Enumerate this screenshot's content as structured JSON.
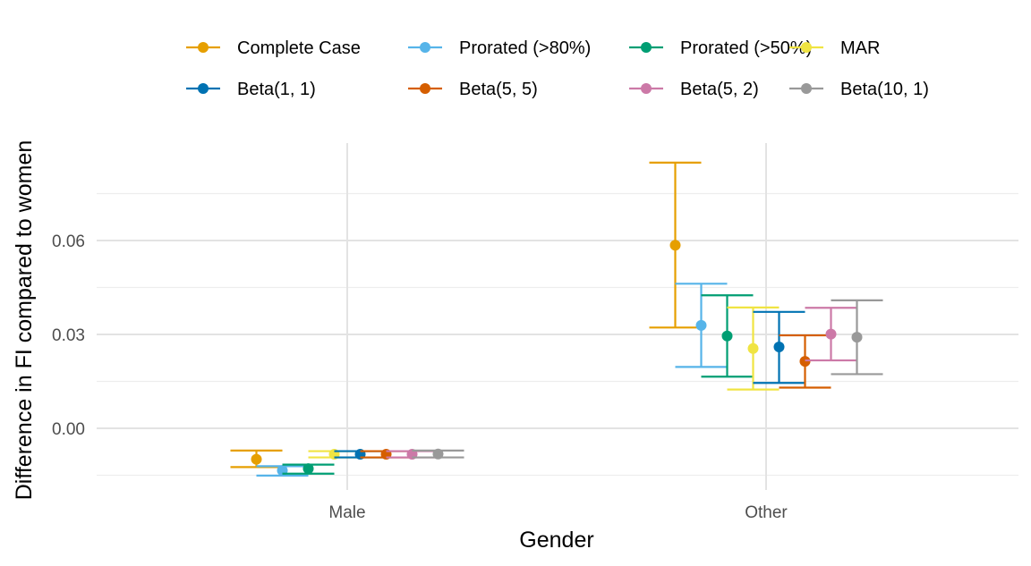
{
  "chart_data": {
    "type": "errorbar",
    "xlabel": "Gender",
    "ylabel": "Difference in FI compared to women",
    "categories": [
      "Male",
      "Other"
    ],
    "y_ticks": [
      "0.00",
      "0.03",
      "0.06"
    ],
    "y_tick_values": [
      0.0,
      0.03,
      0.06
    ],
    "ylim": [
      -0.015,
      0.088
    ],
    "grid": true,
    "legend_position": "top",
    "series": [
      {
        "name": "Complete Case",
        "color": "#E69F00",
        "points": [
          {
            "x": "Male",
            "y": -0.0099,
            "lo": -0.0124,
            "hi": -0.0071
          },
          {
            "x": "Other",
            "y": 0.0585,
            "lo": 0.0322,
            "hi": 0.0849
          }
        ]
      },
      {
        "name": "Prorated (>80%)",
        "color": "#56B4E9",
        "points": [
          {
            "x": "Male",
            "y": -0.0135,
            "lo": -0.0151,
            "hi": -0.0121
          },
          {
            "x": "Other",
            "y": 0.0329,
            "lo": 0.0196,
            "hi": 0.0462
          }
        ]
      },
      {
        "name": "Prorated (>50%)",
        "color": "#009E73",
        "points": [
          {
            "x": "Male",
            "y": -0.0129,
            "lo": -0.0145,
            "hi": -0.0116
          },
          {
            "x": "Other",
            "y": 0.0295,
            "lo": 0.0165,
            "hi": 0.0425
          }
        ]
      },
      {
        "name": "MAR",
        "color": "#F0E442",
        "points": [
          {
            "x": "Male",
            "y": -0.0083,
            "lo": -0.0093,
            "hi": -0.0073
          },
          {
            "x": "Other",
            "y": 0.0255,
            "lo": 0.0124,
            "hi": 0.0386
          }
        ]
      },
      {
        "name": "Beta(1, 1)",
        "color": "#0072B2",
        "points": [
          {
            "x": "Male",
            "y": -0.0083,
            "lo": -0.0093,
            "hi": -0.0073
          },
          {
            "x": "Other",
            "y": 0.026,
            "lo": 0.0145,
            "hi": 0.0372
          }
        ]
      },
      {
        "name": "Beta(5, 5)",
        "color": "#D55E00",
        "points": [
          {
            "x": "Male",
            "y": -0.0083,
            "lo": -0.0093,
            "hi": -0.0073
          },
          {
            "x": "Other",
            "y": 0.0214,
            "lo": 0.013,
            "hi": 0.0297
          }
        ]
      },
      {
        "name": "Beta(5, 2)",
        "color": "#CC79A7",
        "points": [
          {
            "x": "Male",
            "y": -0.0083,
            "lo": -0.0093,
            "hi": -0.0073
          },
          {
            "x": "Other",
            "y": 0.0301,
            "lo": 0.0217,
            "hi": 0.0385
          }
        ]
      },
      {
        "name": "Beta(10, 1)",
        "color": "#999999",
        "points": [
          {
            "x": "Male",
            "y": -0.0082,
            "lo": -0.0093,
            "hi": -0.0071
          },
          {
            "x": "Other",
            "y": 0.0291,
            "lo": 0.0173,
            "hi": 0.0409
          }
        ]
      }
    ]
  }
}
